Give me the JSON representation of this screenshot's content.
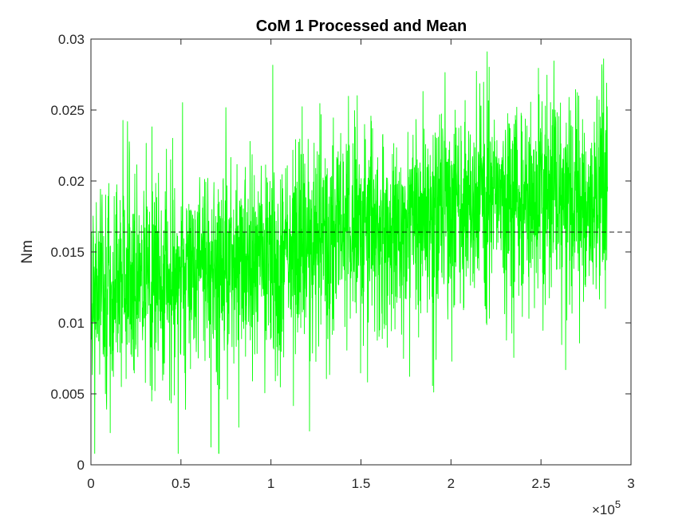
{
  "chart_data": {
    "type": "line",
    "title": "CoM 1 Processed and Mean",
    "xlabel": "",
    "ylabel": "Nm",
    "x_exponent_base": "×10",
    "x_exponent_power": "5",
    "xlim": [
      0,
      300000
    ],
    "ylim": [
      0,
      0.03
    ],
    "x_tick_labels": [
      "0",
      "0.5",
      "1",
      "1.5",
      "2",
      "2.5",
      "3"
    ],
    "x_tick_values": [
      0,
      50000,
      100000,
      150000,
      200000,
      250000,
      300000
    ],
    "y_tick_labels": [
      "0",
      "0.005",
      "0.01",
      "0.015",
      "0.02",
      "0.025",
      "0.03"
    ],
    "y_tick_values": [
      0,
      0.005,
      0.01,
      0.015,
      0.02,
      0.025,
      0.03
    ],
    "grid": false,
    "box": true,
    "series": [
      {
        "style": "solid",
        "color": "#00ff00",
        "x_start": 0,
        "x_end": 287000,
        "mean_trend": [
          [
            0,
            0.0125
          ],
          [
            50000,
            0.0135
          ],
          [
            100000,
            0.0145
          ],
          [
            150000,
            0.0165
          ],
          [
            200000,
            0.018
          ],
          [
            250000,
            0.019
          ],
          [
            287000,
            0.0185
          ]
        ],
        "spread": 0.0035,
        "min": 0.0008,
        "max": 0.0296
      },
      {
        "style": "dashed",
        "color": "#000000",
        "x": [
          0,
          300000
        ],
        "values": [
          0.0164,
          0.0164
        ]
      }
    ]
  }
}
